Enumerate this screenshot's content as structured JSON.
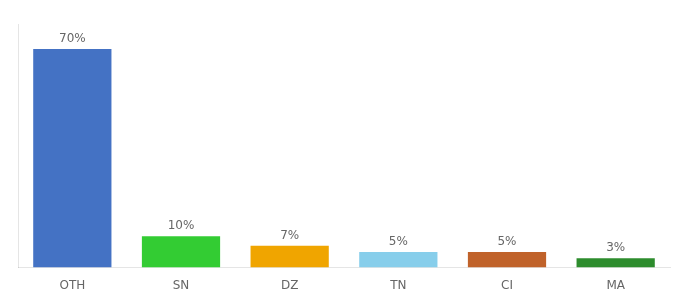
{
  "chart_data": {
    "type": "bar",
    "categories": [
      "OTH",
      "SN",
      "DZ",
      "TN",
      "CI",
      "MA"
    ],
    "values": [
      70,
      10,
      7,
      5,
      5,
      3
    ],
    "value_labels": [
      "70%",
      "10%",
      "7%",
      "5%",
      "5%",
      "3%"
    ],
    "colors": [
      "#4472c4",
      "#33cc33",
      "#f0a500",
      "#87ceeb",
      "#c0622a",
      "#2d8c2d"
    ],
    "ylim": [
      0,
      78
    ],
    "data_labels": true,
    "tick_labels": "x",
    "grid": false
  }
}
